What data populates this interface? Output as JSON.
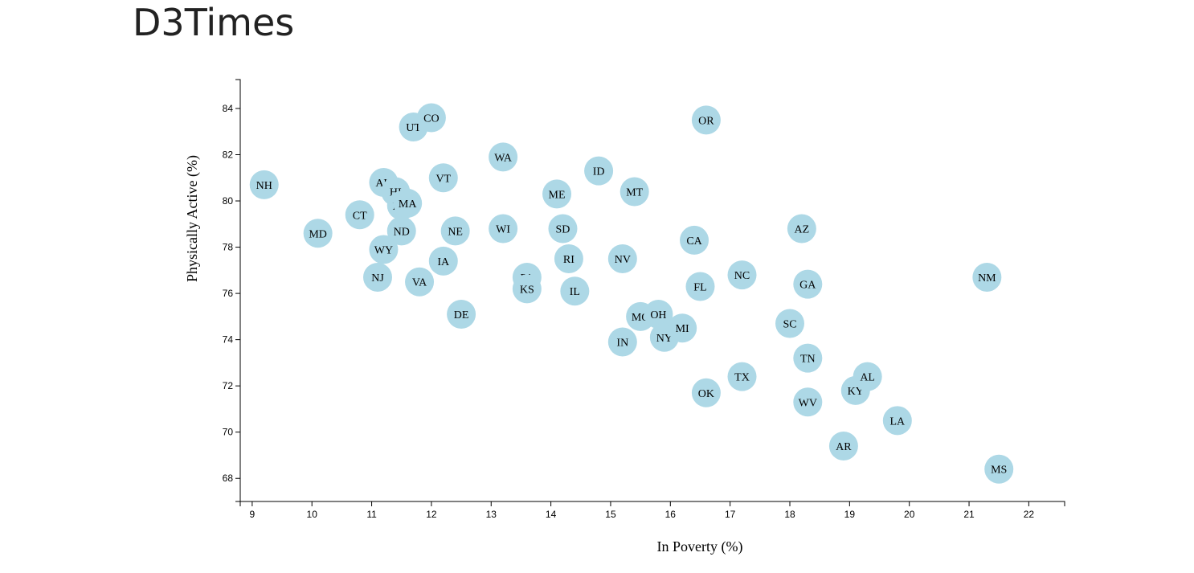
{
  "page": {
    "title": "D3Times"
  },
  "chart_data": {
    "type": "scatter",
    "xlabel": "In Poverty (%)",
    "ylabel": "Physically Active (%)",
    "xlim": [
      8.8,
      22.6
    ],
    "ylim": [
      67,
      85.25
    ],
    "xticks": [
      9,
      10,
      11,
      12,
      13,
      14,
      15,
      16,
      17,
      18,
      19,
      20,
      21,
      22
    ],
    "yticks": [
      68,
      70,
      72,
      74,
      76,
      78,
      80,
      82,
      84
    ],
    "marker_color": "#add8e6",
    "points": [
      {
        "abbr": "NH",
        "x": 9.2,
        "y": 80.7
      },
      {
        "abbr": "MD",
        "x": 10.1,
        "y": 78.6
      },
      {
        "abbr": "CT",
        "x": 10.8,
        "y": 79.4
      },
      {
        "abbr": "NJ",
        "x": 11.1,
        "y": 76.7
      },
      {
        "abbr": "WY",
        "x": 11.2,
        "y": 77.9
      },
      {
        "abbr": "AK",
        "x": 11.2,
        "y": 80.8
      },
      {
        "abbr": "HI",
        "x": 11.4,
        "y": 80.4
      },
      {
        "abbr": "MN",
        "x": 11.5,
        "y": 79.8
      },
      {
        "abbr": "MA",
        "x": 11.6,
        "y": 79.9
      },
      {
        "abbr": "ND",
        "x": 11.5,
        "y": 78.7
      },
      {
        "abbr": "UT",
        "x": 11.7,
        "y": 83.2
      },
      {
        "abbr": "CO",
        "x": 12.0,
        "y": 83.6
      },
      {
        "abbr": "VA",
        "x": 11.8,
        "y": 76.5
      },
      {
        "abbr": "VT",
        "x": 12.2,
        "y": 81.0
      },
      {
        "abbr": "IA",
        "x": 12.2,
        "y": 77.4
      },
      {
        "abbr": "NE",
        "x": 12.4,
        "y": 78.7
      },
      {
        "abbr": "DE",
        "x": 12.5,
        "y": 75.1
      },
      {
        "abbr": "WA",
        "x": 13.2,
        "y": 81.9
      },
      {
        "abbr": "WI",
        "x": 13.2,
        "y": 78.8
      },
      {
        "abbr": "PA",
        "x": 13.6,
        "y": 76.7
      },
      {
        "abbr": "KS",
        "x": 13.6,
        "y": 76.2
      },
      {
        "abbr": "ME",
        "x": 14.1,
        "y": 80.3
      },
      {
        "abbr": "SD",
        "x": 14.2,
        "y": 78.8
      },
      {
        "abbr": "RI",
        "x": 14.3,
        "y": 77.5
      },
      {
        "abbr": "IL",
        "x": 14.4,
        "y": 76.1
      },
      {
        "abbr": "ID",
        "x": 14.8,
        "y": 81.3
      },
      {
        "abbr": "IN",
        "x": 15.2,
        "y": 73.9
      },
      {
        "abbr": "NV",
        "x": 15.2,
        "y": 77.5
      },
      {
        "abbr": "MT",
        "x": 15.4,
        "y": 80.4
      },
      {
        "abbr": "MO",
        "x": 15.5,
        "y": 75.0
      },
      {
        "abbr": "OH",
        "x": 15.8,
        "y": 75.1
      },
      {
        "abbr": "NY",
        "x": 15.9,
        "y": 74.1
      },
      {
        "abbr": "MI",
        "x": 16.2,
        "y": 74.5
      },
      {
        "abbr": "CA",
        "x": 16.4,
        "y": 78.3
      },
      {
        "abbr": "FL",
        "x": 16.5,
        "y": 76.3
      },
      {
        "abbr": "OR",
        "x": 16.6,
        "y": 83.5
      },
      {
        "abbr": "OK",
        "x": 16.6,
        "y": 71.7
      },
      {
        "abbr": "NC",
        "x": 17.2,
        "y": 76.8
      },
      {
        "abbr": "TX",
        "x": 17.2,
        "y": 72.4
      },
      {
        "abbr": "SC",
        "x": 18.0,
        "y": 74.7
      },
      {
        "abbr": "AZ",
        "x": 18.2,
        "y": 78.8
      },
      {
        "abbr": "GA",
        "x": 18.3,
        "y": 76.4
      },
      {
        "abbr": "TN",
        "x": 18.3,
        "y": 73.2
      },
      {
        "abbr": "WV",
        "x": 18.3,
        "y": 71.3
      },
      {
        "abbr": "AR",
        "x": 18.9,
        "y": 69.4
      },
      {
        "abbr": "KY",
        "x": 19.1,
        "y": 71.8
      },
      {
        "abbr": "AL",
        "x": 19.3,
        "y": 72.4
      },
      {
        "abbr": "LA",
        "x": 19.8,
        "y": 70.5
      },
      {
        "abbr": "NM",
        "x": 21.3,
        "y": 76.7
      },
      {
        "abbr": "MS",
        "x": 21.5,
        "y": 68.4
      }
    ]
  }
}
